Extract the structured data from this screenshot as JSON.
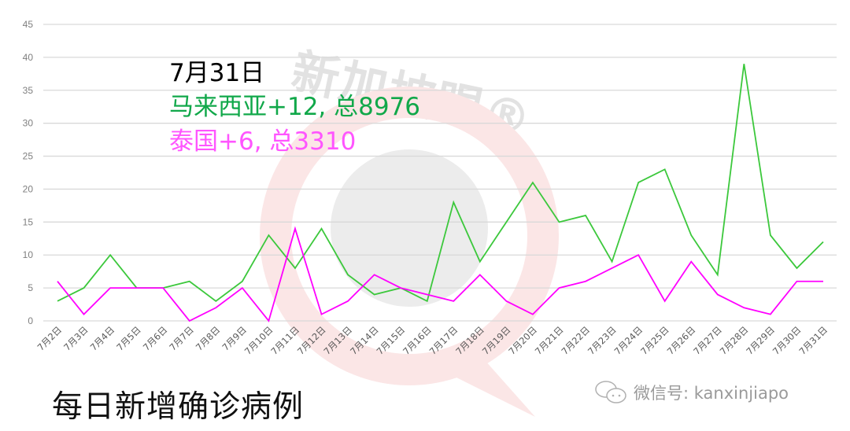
{
  "chart_data": {
    "type": "line",
    "title": "每日新增确诊病例",
    "xlabel": "",
    "ylabel": "",
    "ylim": [
      0,
      45
    ],
    "yticks": [
      0,
      5,
      10,
      15,
      20,
      25,
      30,
      35,
      40,
      45
    ],
    "grid": true,
    "legend": "none",
    "categories": [
      "7月2日",
      "7月3日",
      "7月4日",
      "7月5日",
      "7月6日",
      "7月7日",
      "7月8日",
      "7月9日",
      "7月10日",
      "7月11日",
      "7月12日",
      "7月13日",
      "7月14日",
      "7月15日",
      "7月16日",
      "7月17日",
      "7月18日",
      "7月19日",
      "7月20日",
      "7月21日",
      "7月22日",
      "7月23日",
      "7月24日",
      "7月25日",
      "7月26日",
      "7月27日",
      "7月28日",
      "7月29日",
      "7月30日",
      "7月31日"
    ],
    "series": [
      {
        "name": "马来西亚",
        "color": "#3cc83c",
        "values": [
          3,
          5,
          10,
          5,
          5,
          6,
          3,
          6,
          13,
          8,
          14,
          7,
          4,
          5,
          3,
          18,
          9,
          15,
          21,
          15,
          16,
          9,
          21,
          23,
          13,
          7,
          39,
          13,
          8,
          12
        ]
      },
      {
        "name": "泰国",
        "color": "#ff00ff",
        "values": [
          6,
          1,
          5,
          5,
          5,
          0,
          2,
          5,
          0,
          14,
          1,
          3,
          7,
          5,
          4,
          3,
          7,
          3,
          1,
          5,
          6,
          8,
          10,
          3,
          9,
          4,
          2,
          1,
          6,
          6
        ]
      }
    ],
    "annotations": {
      "date": "7月31日",
      "malaysia": "马来西亚+12, 总8976",
      "thailand": "泰国+6, 总3310"
    }
  },
  "colors": {
    "malaysia_line": "#3cc83c",
    "thailand_line": "#ff00ff",
    "malaysia_text": "#11a84a",
    "thailand_text": "#ff55ff",
    "gridline": "#d9d9d9",
    "watermark_red": "#fbe3e3",
    "watermark_gray": "#e6e6e6"
  },
  "watermark": {
    "brand": "新加坡眼®",
    "wechat": "微信号: kanxinjiapo"
  }
}
